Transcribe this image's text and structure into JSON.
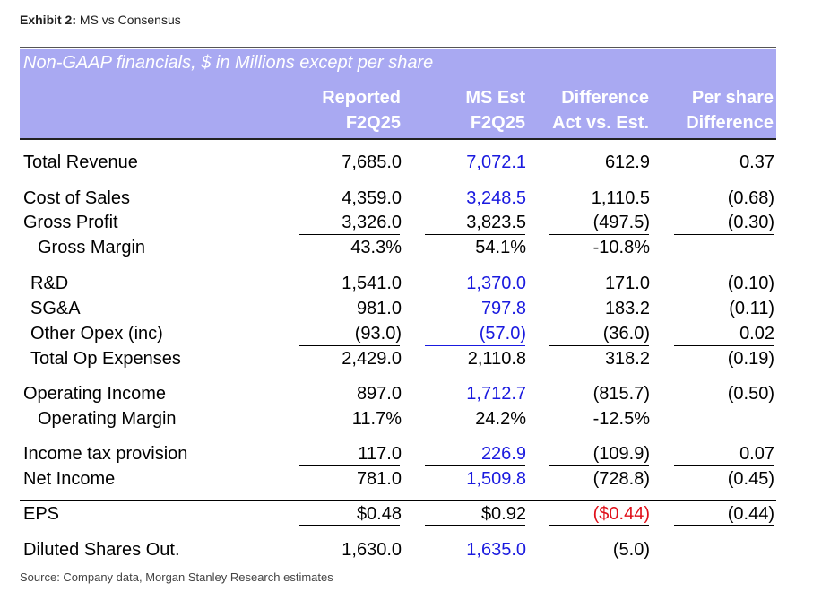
{
  "exhibit": {
    "label": "Exhibit 2:",
    "title": "MS vs Consensus"
  },
  "header": {
    "title": "Non-GAAP financials, $ in Millions except per share",
    "columns": [
      {
        "line1": "Reported",
        "line2": "F2Q25"
      },
      {
        "line1": "MS Est",
        "line2": "F2Q25"
      },
      {
        "line1": "Difference",
        "line2": "Act vs. Est."
      },
      {
        "line1": "Per share",
        "line2": "Difference"
      }
    ]
  },
  "rows": [
    {
      "label": "Total Revenue",
      "reported": "7,685.0",
      "ms_est": "7,072.1",
      "difference": "612.9",
      "per_share": "0.37"
    },
    {
      "label": "Cost of Sales",
      "reported": "4,359.0",
      "ms_est": "3,248.5",
      "difference": "1,110.5",
      "per_share": "(0.68)"
    },
    {
      "label": "Gross Profit",
      "reported": "3,326.0",
      "ms_est": "3,823.5",
      "difference": "(497.5)",
      "per_share": "(0.30)"
    },
    {
      "label": "Gross Margin",
      "reported": "43.3%",
      "ms_est": "54.1%",
      "difference": "-10.8%",
      "per_share": ""
    },
    {
      "label": "R&D",
      "reported": "1,541.0",
      "ms_est": "1,370.0",
      "difference": "171.0",
      "per_share": "(0.10)"
    },
    {
      "label": "SG&A",
      "reported": "981.0",
      "ms_est": "797.8",
      "difference": "183.2",
      "per_share": "(0.11)"
    },
    {
      "label": "Other Opex (inc)",
      "reported": "(93.0)",
      "ms_est": "(57.0)",
      "difference": "(36.0)",
      "per_share": "0.02"
    },
    {
      "label": "Total Op Expenses",
      "reported": "2,429.0",
      "ms_est": "2,110.8",
      "difference": "318.2",
      "per_share": "(0.19)"
    },
    {
      "label": "Operating Income",
      "reported": "897.0",
      "ms_est": "1,712.7",
      "difference": "(815.7)",
      "per_share": "(0.50)"
    },
    {
      "label": "Operating Margin",
      "reported": "11.7%",
      "ms_est": "24.2%",
      "difference": "-12.5%",
      "per_share": ""
    },
    {
      "label": "Income tax provision",
      "reported": "117.0",
      "ms_est": "226.9",
      "difference": "(109.9)",
      "per_share": "0.07"
    },
    {
      "label": "Net Income",
      "reported": "781.0",
      "ms_est": "1,509.8",
      "difference": "(728.8)",
      "per_share": "(0.45)"
    },
    {
      "label": "EPS",
      "reported": "$0.48",
      "ms_est": "$0.92",
      "difference": "($0.44)",
      "per_share": "(0.44)"
    },
    {
      "label": "Diluted Shares Out.",
      "reported": "1,630.0",
      "ms_est": "1,635.0",
      "difference": "(5.0)",
      "per_share": ""
    }
  ],
  "source": "Source: Company data, Morgan Stanley Research estimates",
  "colors": {
    "header_bg": "#a9a9f2",
    "estimate_blue": "#1a1adf",
    "negative_red": "#e0101a"
  }
}
